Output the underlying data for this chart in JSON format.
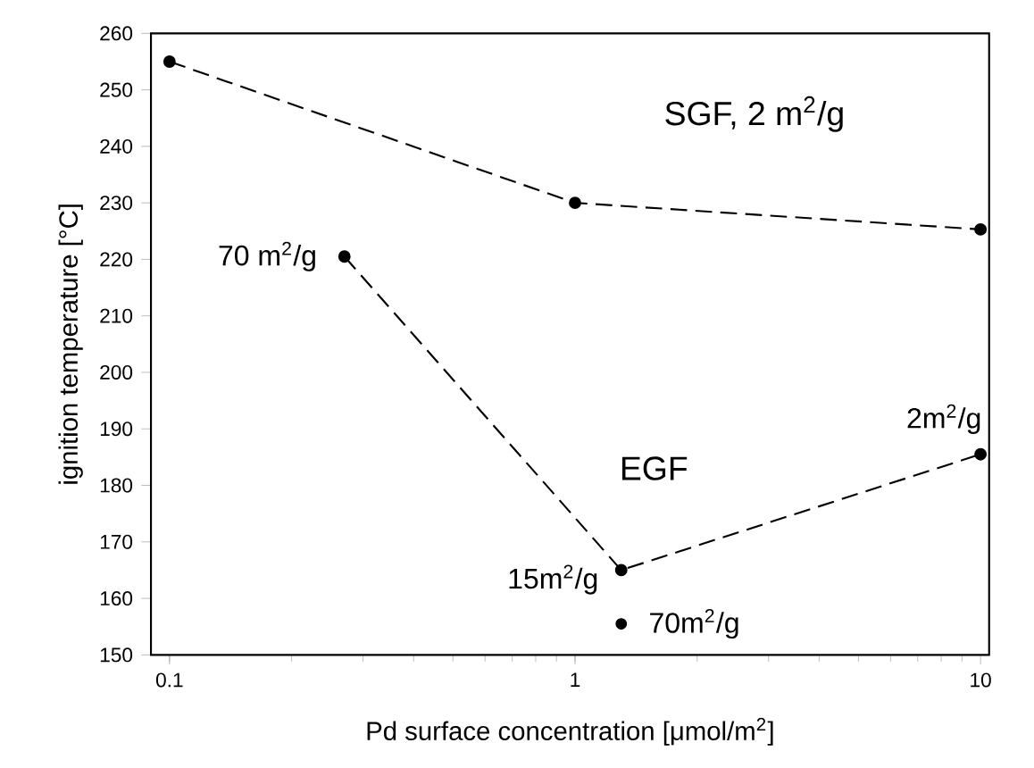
{
  "chart_data": {
    "type": "line",
    "xlabel": "Pd surface concentration [μmol/m$^{2}$]",
    "ylabel": "ignition temperature [°C]",
    "log": "x",
    "xlim": [
      0.09,
      10.5
    ],
    "ylim": [
      150,
      260
    ],
    "xticks": [
      0.1,
      1,
      10
    ],
    "yticks": [
      150,
      160,
      170,
      180,
      190,
      200,
      210,
      220,
      230,
      240,
      250,
      260
    ],
    "grid": false,
    "legend": false,
    "marker": "circle",
    "line_style": "dashed",
    "series": [
      {
        "name": "SGF, 2 m$^{2}$/g",
        "color": "#000000",
        "x": [
          0.1,
          1,
          10
        ],
        "values": [
          255,
          230,
          225.3
        ]
      },
      {
        "name": "EGF",
        "color": "#000000",
        "x": [
          0.27,
          1.3,
          10
        ],
        "values": [
          220.5,
          165,
          185.5
        ]
      },
      {
        "type": "scatter",
        "color": "#000000",
        "x": [
          1.3
        ],
        "values": [
          155.5
        ]
      }
    ],
    "annotations": [
      {
        "text": "70 m$^{2}$/g",
        "x": 0.27,
        "y": 220.5
      },
      {
        "text": "15m$^{2}$/g",
        "x": 1.3,
        "y": 165
      },
      {
        "text": "70m$^{2}$/g",
        "x": 1.3,
        "y": 155.5
      },
      {
        "text": "2m$^{2}$/g",
        "x": 10,
        "y": 185.5
      }
    ]
  }
}
